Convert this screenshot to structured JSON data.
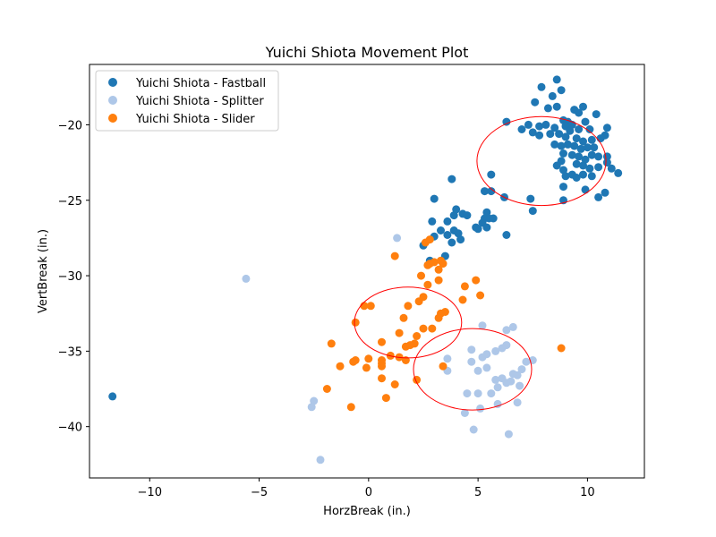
{
  "chart_data": {
    "type": "scatter",
    "title": "Yuichi Shiota Movement Plot",
    "xlabel": "HorzBreak (in.)",
    "ylabel": "VertBreak (in.)",
    "xlim": [
      -12.75,
      12.6
    ],
    "ylim": [
      -43.4,
      -16.0
    ],
    "xticks": [
      -10,
      -5,
      0,
      5,
      10
    ],
    "yticks": [
      -40,
      -35,
      -30,
      -25,
      -20
    ],
    "xtick_labels": [
      "−10",
      "−5",
      "0",
      "5",
      "10"
    ],
    "ytick_labels": [
      "−40",
      "−35",
      "−30",
      "−25",
      "−20"
    ],
    "grid": false,
    "legend_position": "top-left",
    "series": [
      {
        "name": "Yuichi Shiota - Fastball",
        "color": "#1f77b4",
        "points": [
          [
            -11.7,
            -38.0
          ],
          [
            8.6,
            -17.0
          ],
          [
            7.9,
            -17.5
          ],
          [
            8.8,
            -17.7
          ],
          [
            8.4,
            -18.1
          ],
          [
            7.6,
            -18.5
          ],
          [
            9.8,
            -18.8
          ],
          [
            8.2,
            -18.9
          ],
          [
            8.6,
            -18.8
          ],
          [
            9.4,
            -19.0
          ],
          [
            9.6,
            -19.2
          ],
          [
            10.4,
            -19.3
          ],
          [
            8.9,
            -19.7
          ],
          [
            9.1,
            -19.8
          ],
          [
            6.3,
            -19.8
          ],
          [
            7.3,
            -20.0
          ],
          [
            7.8,
            -20.1
          ],
          [
            8.1,
            -20.0
          ],
          [
            8.5,
            -20.2
          ],
          [
            9.0,
            -20.1
          ],
          [
            9.3,
            -20.0
          ],
          [
            9.6,
            -20.3
          ],
          [
            9.9,
            -19.8
          ],
          [
            10.1,
            -20.3
          ],
          [
            10.9,
            -20.2
          ],
          [
            7.0,
            -20.3
          ],
          [
            7.5,
            -20.5
          ],
          [
            7.8,
            -20.7
          ],
          [
            8.3,
            -20.6
          ],
          [
            8.7,
            -20.6
          ],
          [
            9.0,
            -20.8
          ],
          [
            9.2,
            -20.4
          ],
          [
            9.5,
            -20.9
          ],
          [
            9.8,
            -21.1
          ],
          [
            10.2,
            -21.0
          ],
          [
            10.6,
            -20.9
          ],
          [
            10.8,
            -20.7
          ],
          [
            8.5,
            -21.3
          ],
          [
            8.8,
            -21.4
          ],
          [
            9.1,
            -21.3
          ],
          [
            9.4,
            -21.4
          ],
          [
            9.7,
            -21.6
          ],
          [
            10.0,
            -21.5
          ],
          [
            10.3,
            -21.5
          ],
          [
            8.9,
            -21.9
          ],
          [
            9.3,
            -22.0
          ],
          [
            9.6,
            -22.1
          ],
          [
            9.9,
            -22.3
          ],
          [
            10.2,
            -22.0
          ],
          [
            10.5,
            -22.1
          ],
          [
            10.9,
            -22.1
          ],
          [
            8.8,
            -22.4
          ],
          [
            9.5,
            -22.6
          ],
          [
            9.8,
            -22.7
          ],
          [
            10.1,
            -22.9
          ],
          [
            10.5,
            -22.8
          ],
          [
            10.9,
            -22.5
          ],
          [
            11.1,
            -22.9
          ],
          [
            8.6,
            -22.7
          ],
          [
            8.9,
            -23.0
          ],
          [
            9.3,
            -23.3
          ],
          [
            9.8,
            -23.3
          ],
          [
            10.2,
            -23.4
          ],
          [
            11.4,
            -23.2
          ],
          [
            9.0,
            -23.4
          ],
          [
            9.5,
            -23.5
          ],
          [
            8.9,
            -24.1
          ],
          [
            9.9,
            -24.3
          ],
          [
            10.5,
            -24.8
          ],
          [
            10.8,
            -24.5
          ],
          [
            8.9,
            -25.0
          ],
          [
            7.4,
            -24.9
          ],
          [
            7.5,
            -25.7
          ],
          [
            6.2,
            -24.8
          ],
          [
            5.3,
            -24.4
          ],
          [
            5.6,
            -24.4
          ],
          [
            5.6,
            -23.3
          ],
          [
            3.8,
            -23.6
          ],
          [
            3.0,
            -24.9
          ],
          [
            4.0,
            -25.6
          ],
          [
            4.3,
            -25.9
          ],
          [
            3.6,
            -26.4
          ],
          [
            3.9,
            -26.0
          ],
          [
            4.5,
            -26.0
          ],
          [
            5.4,
            -25.8
          ],
          [
            5.3,
            -26.2
          ],
          [
            5.5,
            -26.2
          ],
          [
            5.7,
            -26.2
          ],
          [
            5.2,
            -26.5
          ],
          [
            5.4,
            -26.8
          ],
          [
            4.9,
            -26.8
          ],
          [
            5.0,
            -26.9
          ],
          [
            2.9,
            -26.4
          ],
          [
            3.3,
            -27.0
          ],
          [
            3.6,
            -27.3
          ],
          [
            3.9,
            -27.0
          ],
          [
            4.1,
            -27.2
          ],
          [
            3.8,
            -27.8
          ],
          [
            4.2,
            -27.6
          ],
          [
            2.5,
            -28.0
          ],
          [
            3.0,
            -27.4
          ],
          [
            6.3,
            -27.3
          ],
          [
            2.8,
            -29.0
          ],
          [
            3.5,
            -28.7
          ]
        ]
      },
      {
        "name": "Yuichi Shiota - Splitter",
        "color": "#aec7e8",
        "points": [
          [
            -5.6,
            -30.2
          ],
          [
            1.3,
            -27.5
          ],
          [
            -2.5,
            -38.3
          ],
          [
            -2.6,
            -38.7
          ],
          [
            -2.2,
            -42.2
          ],
          [
            3.6,
            -35.5
          ],
          [
            3.6,
            -36.3
          ],
          [
            4.7,
            -34.9
          ],
          [
            4.7,
            -35.7
          ],
          [
            5.2,
            -35.4
          ],
          [
            5.4,
            -35.2
          ],
          [
            5.8,
            -35.0
          ],
          [
            6.3,
            -34.6
          ],
          [
            6.1,
            -34.8
          ],
          [
            6.3,
            -33.6
          ],
          [
            6.6,
            -33.4
          ],
          [
            5.2,
            -33.3
          ],
          [
            7.5,
            -35.6
          ],
          [
            7.2,
            -35.7
          ],
          [
            7.0,
            -36.2
          ],
          [
            6.6,
            -36.5
          ],
          [
            6.8,
            -36.6
          ],
          [
            5.0,
            -36.3
          ],
          [
            5.4,
            -36.1
          ],
          [
            5.8,
            -36.9
          ],
          [
            6.1,
            -36.8
          ],
          [
            6.3,
            -37.1
          ],
          [
            6.5,
            -37.0
          ],
          [
            6.9,
            -37.3
          ],
          [
            5.9,
            -37.4
          ],
          [
            4.5,
            -37.8
          ],
          [
            5.0,
            -37.8
          ],
          [
            5.6,
            -37.8
          ],
          [
            6.8,
            -38.4
          ],
          [
            5.9,
            -38.5
          ],
          [
            5.1,
            -38.8
          ],
          [
            4.4,
            -39.1
          ],
          [
            4.8,
            -40.2
          ],
          [
            6.4,
            -40.5
          ]
        ]
      },
      {
        "name": "Yuichi Shiota - Slider",
        "color": "#ff7f0e",
        "points": [
          [
            8.8,
            -34.8
          ],
          [
            2.6,
            -27.8
          ],
          [
            2.8,
            -27.6
          ],
          [
            1.2,
            -28.7
          ],
          [
            3.3,
            -29.0
          ],
          [
            3.4,
            -29.2
          ],
          [
            2.7,
            -29.3
          ],
          [
            2.8,
            -29.2
          ],
          [
            3.0,
            -29.1
          ],
          [
            3.2,
            -29.6
          ],
          [
            2.4,
            -30.0
          ],
          [
            3.2,
            -30.3
          ],
          [
            4.9,
            -30.3
          ],
          [
            2.7,
            -30.6
          ],
          [
            4.4,
            -30.7
          ],
          [
            5.1,
            -31.3
          ],
          [
            2.5,
            -31.4
          ],
          [
            2.3,
            -31.7
          ],
          [
            4.3,
            -31.6
          ],
          [
            -0.2,
            -32.0
          ],
          [
            1.8,
            -32.0
          ],
          [
            0.1,
            -32.0
          ],
          [
            3.5,
            -32.4
          ],
          [
            3.3,
            -32.5
          ],
          [
            3.2,
            -32.8
          ],
          [
            1.6,
            -32.8
          ],
          [
            -0.6,
            -33.1
          ],
          [
            2.5,
            -33.5
          ],
          [
            2.9,
            -33.5
          ],
          [
            1.4,
            -33.8
          ],
          [
            2.2,
            -34.0
          ],
          [
            1.7,
            -34.7
          ],
          [
            2.1,
            -34.5
          ],
          [
            1.9,
            -34.6
          ],
          [
            -1.7,
            -34.5
          ],
          [
            0.6,
            -34.4
          ],
          [
            1.0,
            -35.3
          ],
          [
            1.4,
            -35.4
          ],
          [
            1.7,
            -35.6
          ],
          [
            0.6,
            -35.6
          ],
          [
            0.0,
            -35.5
          ],
          [
            -0.7,
            -35.7
          ],
          [
            -0.6,
            -35.6
          ],
          [
            -1.3,
            -36.0
          ],
          [
            -0.1,
            -36.1
          ],
          [
            0.6,
            -35.8
          ],
          [
            0.6,
            -36.0
          ],
          [
            3.4,
            -36.0
          ],
          [
            0.6,
            -36.8
          ],
          [
            2.2,
            -36.9
          ],
          [
            1.2,
            -37.2
          ],
          [
            -1.9,
            -37.5
          ],
          [
            0.8,
            -38.1
          ],
          [
            -0.8,
            -38.7
          ]
        ]
      }
    ],
    "ellipses": [
      {
        "cx": 7.9,
        "cy": -22.4,
        "rx": 2.95,
        "ry": 2.95,
        "color": "#ff0000"
      },
      {
        "cx": 1.8,
        "cy": -33.1,
        "rx": 2.45,
        "ry": 2.35,
        "color": "#ff0000"
      },
      {
        "cx": 4.75,
        "cy": -36.2,
        "rx": 2.7,
        "ry": 2.7,
        "color": "#ff0000"
      }
    ]
  }
}
